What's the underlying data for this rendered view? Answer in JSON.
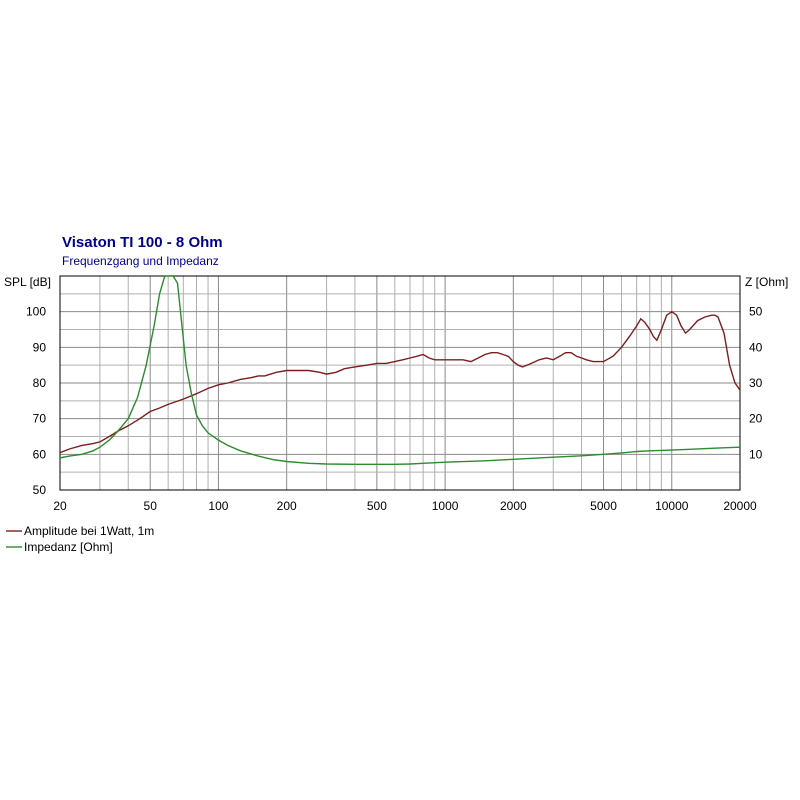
{
  "chart_data": {
    "type": "line",
    "title": "Visaton TI 100 - 8 Ohm",
    "subtitle": "Frequenzgang und Impedanz",
    "x_scale": "log",
    "xlim": [
      20,
      20000
    ],
    "x_ticks": [
      {
        "value": 20,
        "label": "20"
      },
      {
        "value": 50,
        "label": "50"
      },
      {
        "value": 100,
        "label": "100"
      },
      {
        "value": 200,
        "label": "200"
      },
      {
        "value": 500,
        "label": "500"
      },
      {
        "value": 1000,
        "label": "1000"
      },
      {
        "value": 2000,
        "label": "2000"
      },
      {
        "value": 5000,
        "label": "5000"
      },
      {
        "value": 10000,
        "label": "10000"
      },
      {
        "value": 20000,
        "label": "20000"
      }
    ],
    "ylabel_left": "SPL [dB]",
    "ylim_left": [
      50,
      110
    ],
    "y_ticks_left": [
      50,
      60,
      70,
      80,
      90,
      100
    ],
    "ylabel_right": "Z [Ohm]",
    "ylim_right": [
      0,
      60
    ],
    "y_ticks_right": [
      10,
      20,
      30,
      40,
      50
    ],
    "grid": true,
    "legend_position": "bottom-left",
    "colors": {
      "background": "#ffffff",
      "grid": "#b0b0b0",
      "axis": "#000000",
      "title": "#00008b",
      "amplitude": "#7a1f1f",
      "impedance": "#2e8b2e"
    },
    "series": [
      {
        "name": "Amplitude bei 1Watt, 1m",
        "axis": "left",
        "x": [
          20,
          22,
          25,
          28,
          30,
          33,
          36,
          40,
          45,
          50,
          55,
          60,
          70,
          80,
          90,
          100,
          110,
          125,
          140,
          150,
          160,
          180,
          200,
          220,
          250,
          280,
          300,
          330,
          360,
          400,
          450,
          500,
          550,
          600,
          650,
          700,
          750,
          800,
          850,
          900,
          1000,
          1100,
          1200,
          1300,
          1400,
          1500,
          1600,
          1700,
          1800,
          1900,
          2000,
          2100,
          2200,
          2400,
          2600,
          2800,
          3000,
          3200,
          3400,
          3600,
          3800,
          4000,
          4200,
          4500,
          4800,
          5000,
          5500,
          6000,
          6500,
          7000,
          7300,
          7600,
          8000,
          8300,
          8600,
          9000,
          9500,
          10000,
          10500,
          11000,
          11500,
          12000,
          13000,
          14000,
          15000,
          15500,
          16000,
          17000,
          18000,
          19000,
          20000
        ],
        "y": [
          60.5,
          61.5,
          62.5,
          63,
          63.5,
          65,
          66.5,
          68,
          70,
          72,
          73,
          74,
          75.5,
          77,
          78.5,
          79.5,
          80,
          81,
          81.5,
          82,
          82,
          83,
          83.5,
          83.5,
          83.5,
          83,
          82.5,
          83,
          84,
          84.5,
          85,
          85.5,
          85.5,
          86,
          86.5,
          87,
          87.5,
          88,
          87,
          86.5,
          86.5,
          86.5,
          86.5,
          86,
          87,
          88,
          88.5,
          88.5,
          88,
          87.5,
          86,
          85,
          84.5,
          85.5,
          86.5,
          87,
          86.5,
          87.5,
          88.5,
          88.5,
          87.5,
          87,
          86.5,
          86,
          86,
          86,
          87.5,
          90,
          93,
          96,
          98,
          97,
          95,
          93,
          92,
          95,
          99,
          100,
          99,
          96,
          94,
          95,
          97.5,
          98.5,
          99,
          99,
          98.5,
          94,
          85,
          80,
          78
        ]
      },
      {
        "name": "Impedanz [Ohm]",
        "axis": "right",
        "x": [
          20,
          22,
          25,
          28,
          30,
          33,
          36,
          40,
          44,
          48,
          52,
          55,
          58,
          60,
          63,
          66,
          68,
          72,
          76,
          80,
          85,
          90,
          100,
          110,
          125,
          150,
          175,
          200,
          250,
          300,
          400,
          500,
          600,
          700,
          800,
          1000,
          1500,
          2000,
          3000,
          4000,
          5000,
          6000,
          7000,
          8000,
          10000,
          12000,
          15000,
          18000,
          20000
        ],
        "y": [
          9,
          9.5,
          10,
          11,
          12,
          14,
          16.5,
          20,
          26,
          35,
          46,
          55,
          60,
          60,
          60,
          58,
          50,
          35,
          27,
          21,
          18,
          16,
          14,
          12.5,
          11,
          9.5,
          8.5,
          8,
          7.5,
          7.3,
          7.2,
          7.2,
          7.2,
          7.3,
          7.5,
          7.8,
          8.2,
          8.6,
          9.2,
          9.6,
          10,
          10.4,
          10.8,
          11,
          11.2,
          11.4,
          11.7,
          11.9,
          12
        ]
      }
    ]
  }
}
